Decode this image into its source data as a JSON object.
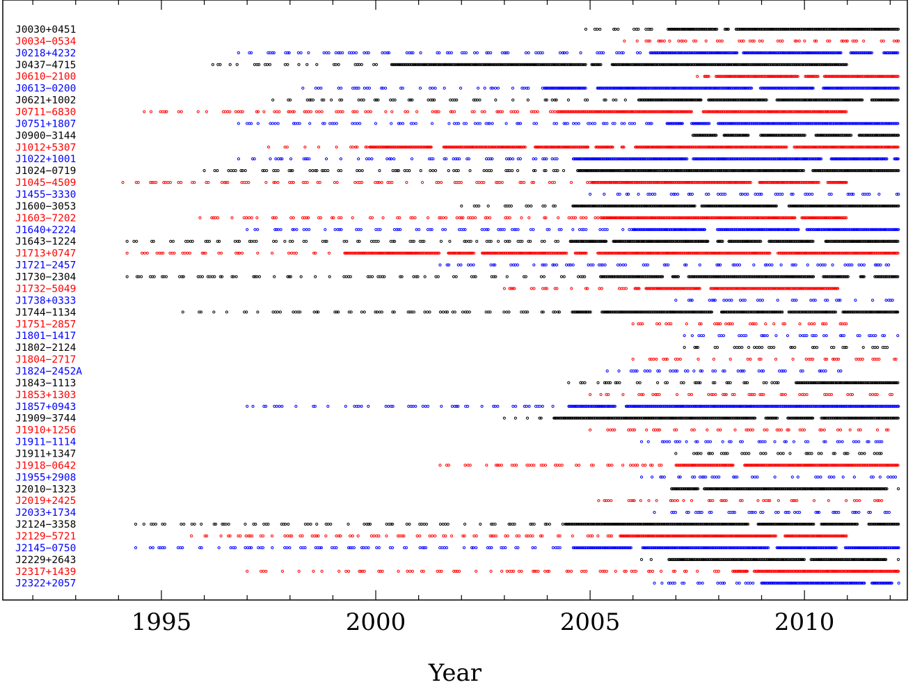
{
  "chart_data": {
    "type": "scatter",
    "title": "",
    "xlabel": "Year",
    "ylabel": "",
    "xlim": [
      1991.3,
      2012.4
    ],
    "x_ticks": [
      1995,
      2000,
      2005,
      2010
    ],
    "grid": false,
    "legend": "none",
    "marker": "open-circle",
    "colors": {
      "black": "#000000",
      "red": "#ff0000",
      "blue": "#0000ff"
    },
    "series": [
      {
        "name": "J0030+0451",
        "color": "black",
        "x_start": 2004.9,
        "x_end": 2012.2,
        "dense_from": 2006.7
      },
      {
        "name": "J0034−0534",
        "color": "red",
        "x_start": 2005.8,
        "x_end": 2012.2,
        "dense_from": 2012.3
      },
      {
        "name": "J0218+4232",
        "color": "blue",
        "x_start": 1996.8,
        "x_end": 2012.2,
        "dense_from": 2006.3
      },
      {
        "name": "J0437−4715",
        "color": "black",
        "x_start": 1996.2,
        "x_end": 2011.0,
        "dense_from": 2000.3
      },
      {
        "name": "J0610−2100",
        "color": "red",
        "x_start": 2007.5,
        "x_end": 2012.2,
        "dense_from": 2007.6
      },
      {
        "name": "J0613−0200",
        "color": "blue",
        "x_start": 1998.3,
        "x_end": 2012.2,
        "dense_from": 2003.9
      },
      {
        "name": "J0621+1002",
        "color": "black",
        "x_start": 1997.6,
        "x_end": 2012.2,
        "dense_from": 2006.0
      },
      {
        "name": "J0711−6830",
        "color": "red",
        "x_start": 1994.6,
        "x_end": 2011.0,
        "dense_from": 2004.2
      },
      {
        "name": "J0751+1807",
        "color": "blue",
        "x_start": 1996.8,
        "x_end": 2012.2,
        "dense_from": 2006.5
      },
      {
        "name": "J0900−3144",
        "color": "black",
        "x_start": 2007.4,
        "x_end": 2012.2,
        "dense_from": 2007.4
      },
      {
        "name": "J1012+5307",
        "color": "red",
        "x_start": 1997.5,
        "x_end": 2012.2,
        "dense_from": 1999.8
      },
      {
        "name": "J1022+1001",
        "color": "blue",
        "x_start": 1996.8,
        "x_end": 2012.2,
        "dense_from": 2004.6
      },
      {
        "name": "J1024−0719",
        "color": "black",
        "x_start": 1996.0,
        "x_end": 2012.2,
        "dense_from": 2004.5
      },
      {
        "name": "J1045−4509",
        "color": "red",
        "x_start": 1994.1,
        "x_end": 2011.0,
        "dense_from": 2005.0
      },
      {
        "name": "J1455−3330",
        "color": "blue",
        "x_start": 2005.0,
        "x_end": 2012.2,
        "dense_from": 2012.3
      },
      {
        "name": "J1600−3053",
        "color": "black",
        "x_start": 2002.0,
        "x_end": 2012.2,
        "dense_from": 2004.2
      },
      {
        "name": "J1603−7202",
        "color": "red",
        "x_start": 1995.9,
        "x_end": 2011.0,
        "dense_from": 2005.2
      },
      {
        "name": "J1640+2224",
        "color": "blue",
        "x_start": 1997.0,
        "x_end": 2012.2,
        "dense_from": 2006.0
      },
      {
        "name": "J1643−1224",
        "color": "black",
        "x_start": 1994.2,
        "x_end": 2012.2,
        "dense_from": 2004.5
      },
      {
        "name": "J1713+0747",
        "color": "red",
        "x_start": 1994.2,
        "x_end": 2012.2,
        "dense_from": 1999.2
      },
      {
        "name": "J1721−2457",
        "color": "blue",
        "x_start": 2001.5,
        "x_end": 2012.0,
        "dense_from": 2012.3
      },
      {
        "name": "J1730−2304",
        "color": "black",
        "x_start": 1994.2,
        "x_end": 2012.2,
        "dense_from": 2005.0
      },
      {
        "name": "J1732−5049",
        "color": "red",
        "x_start": 2003.0,
        "x_end": 2011.0,
        "dense_from": 2006.0
      },
      {
        "name": "J1738+0333",
        "color": "blue",
        "x_start": 2007.0,
        "x_end": 2012.2,
        "dense_from": 2012.3
      },
      {
        "name": "J1744−1134",
        "color": "black",
        "x_start": 1995.5,
        "x_end": 2012.2,
        "dense_from": 2004.3
      },
      {
        "name": "J1751−2857",
        "color": "red",
        "x_start": 2006.0,
        "x_end": 2011.0,
        "dense_from": 2012.3
      },
      {
        "name": "J1801−1417",
        "color": "blue",
        "x_start": 2007.2,
        "x_end": 2012.2,
        "dense_from": 2012.3
      },
      {
        "name": "J1802−2124",
        "color": "black",
        "x_start": 2007.2,
        "x_end": 2012.2,
        "dense_from": 2012.3
      },
      {
        "name": "J1804−2717",
        "color": "red",
        "x_start": 2006.0,
        "x_end": 2012.2,
        "dense_from": 2012.3
      },
      {
        "name": "J1824−2452A",
        "color": "blue",
        "x_start": 2005.4,
        "x_end": 2011.0,
        "dense_from": 2012.3
      },
      {
        "name": "J1843−1113",
        "color": "black",
        "x_start": 2004.5,
        "x_end": 2012.2,
        "dense_from": 2009.6
      },
      {
        "name": "J1853+1303",
        "color": "red",
        "x_start": 2005.0,
        "x_end": 2012.2,
        "dense_from": 2012.3
      },
      {
        "name": "J1857+0943",
        "color": "blue",
        "x_start": 1997.0,
        "x_end": 2012.2,
        "dense_from": 2004.4
      },
      {
        "name": "J1909−3744",
        "color": "black",
        "x_start": 2003.0,
        "x_end": 2012.2,
        "dense_from": 2004.1
      },
      {
        "name": "J1910+1256",
        "color": "red",
        "x_start": 2005.0,
        "x_end": 2012.0,
        "dense_from": 2012.3
      },
      {
        "name": "J1911−1114",
        "color": "blue",
        "x_start": 2006.2,
        "x_end": 2012.0,
        "dense_from": 2012.3
      },
      {
        "name": "J1911+1347",
        "color": "black",
        "x_start": 2007.0,
        "x_end": 2012.0,
        "dense_from": 2012.3
      },
      {
        "name": "J1918−0642",
        "color": "red",
        "x_start": 2001.5,
        "x_end": 2012.2,
        "dense_from": 2006.7
      },
      {
        "name": "J1955+2908",
        "color": "blue",
        "x_start": 2006.2,
        "x_end": 2012.2,
        "dense_from": 2012.3
      },
      {
        "name": "J2010−1323",
        "color": "black",
        "x_start": 2006.9,
        "x_end": 2012.2,
        "dense_from": 2006.9
      },
      {
        "name": "J2019+2425",
        "color": "red",
        "x_start": 2005.2,
        "x_end": 2012.2,
        "dense_from": 2012.3
      },
      {
        "name": "J2033+1734",
        "color": "blue",
        "x_start": 2006.5,
        "x_end": 2012.2,
        "dense_from": 2012.3
      },
      {
        "name": "J2124−3358",
        "color": "black",
        "x_start": 1994.4,
        "x_end": 2012.2,
        "dense_from": 2004.4
      },
      {
        "name": "J2129−5721",
        "color": "red",
        "x_start": 1995.7,
        "x_end": 2011.0,
        "dense_from": 2005.7
      },
      {
        "name": "J2145−0750",
        "color": "blue",
        "x_start": 1994.4,
        "x_end": 2012.2,
        "dense_from": 2004.3
      },
      {
        "name": "J2229+2643",
        "color": "black",
        "x_start": 2006.2,
        "x_end": 2012.2,
        "dense_from": 2006.6
      },
      {
        "name": "J2317+1439",
        "color": "red",
        "x_start": 1997.0,
        "x_end": 2012.2,
        "dense_from": 2008.3
      },
      {
        "name": "J2322+2057",
        "color": "blue",
        "x_start": 2006.5,
        "x_end": 2012.2,
        "dense_from": 2009.0
      }
    ]
  }
}
